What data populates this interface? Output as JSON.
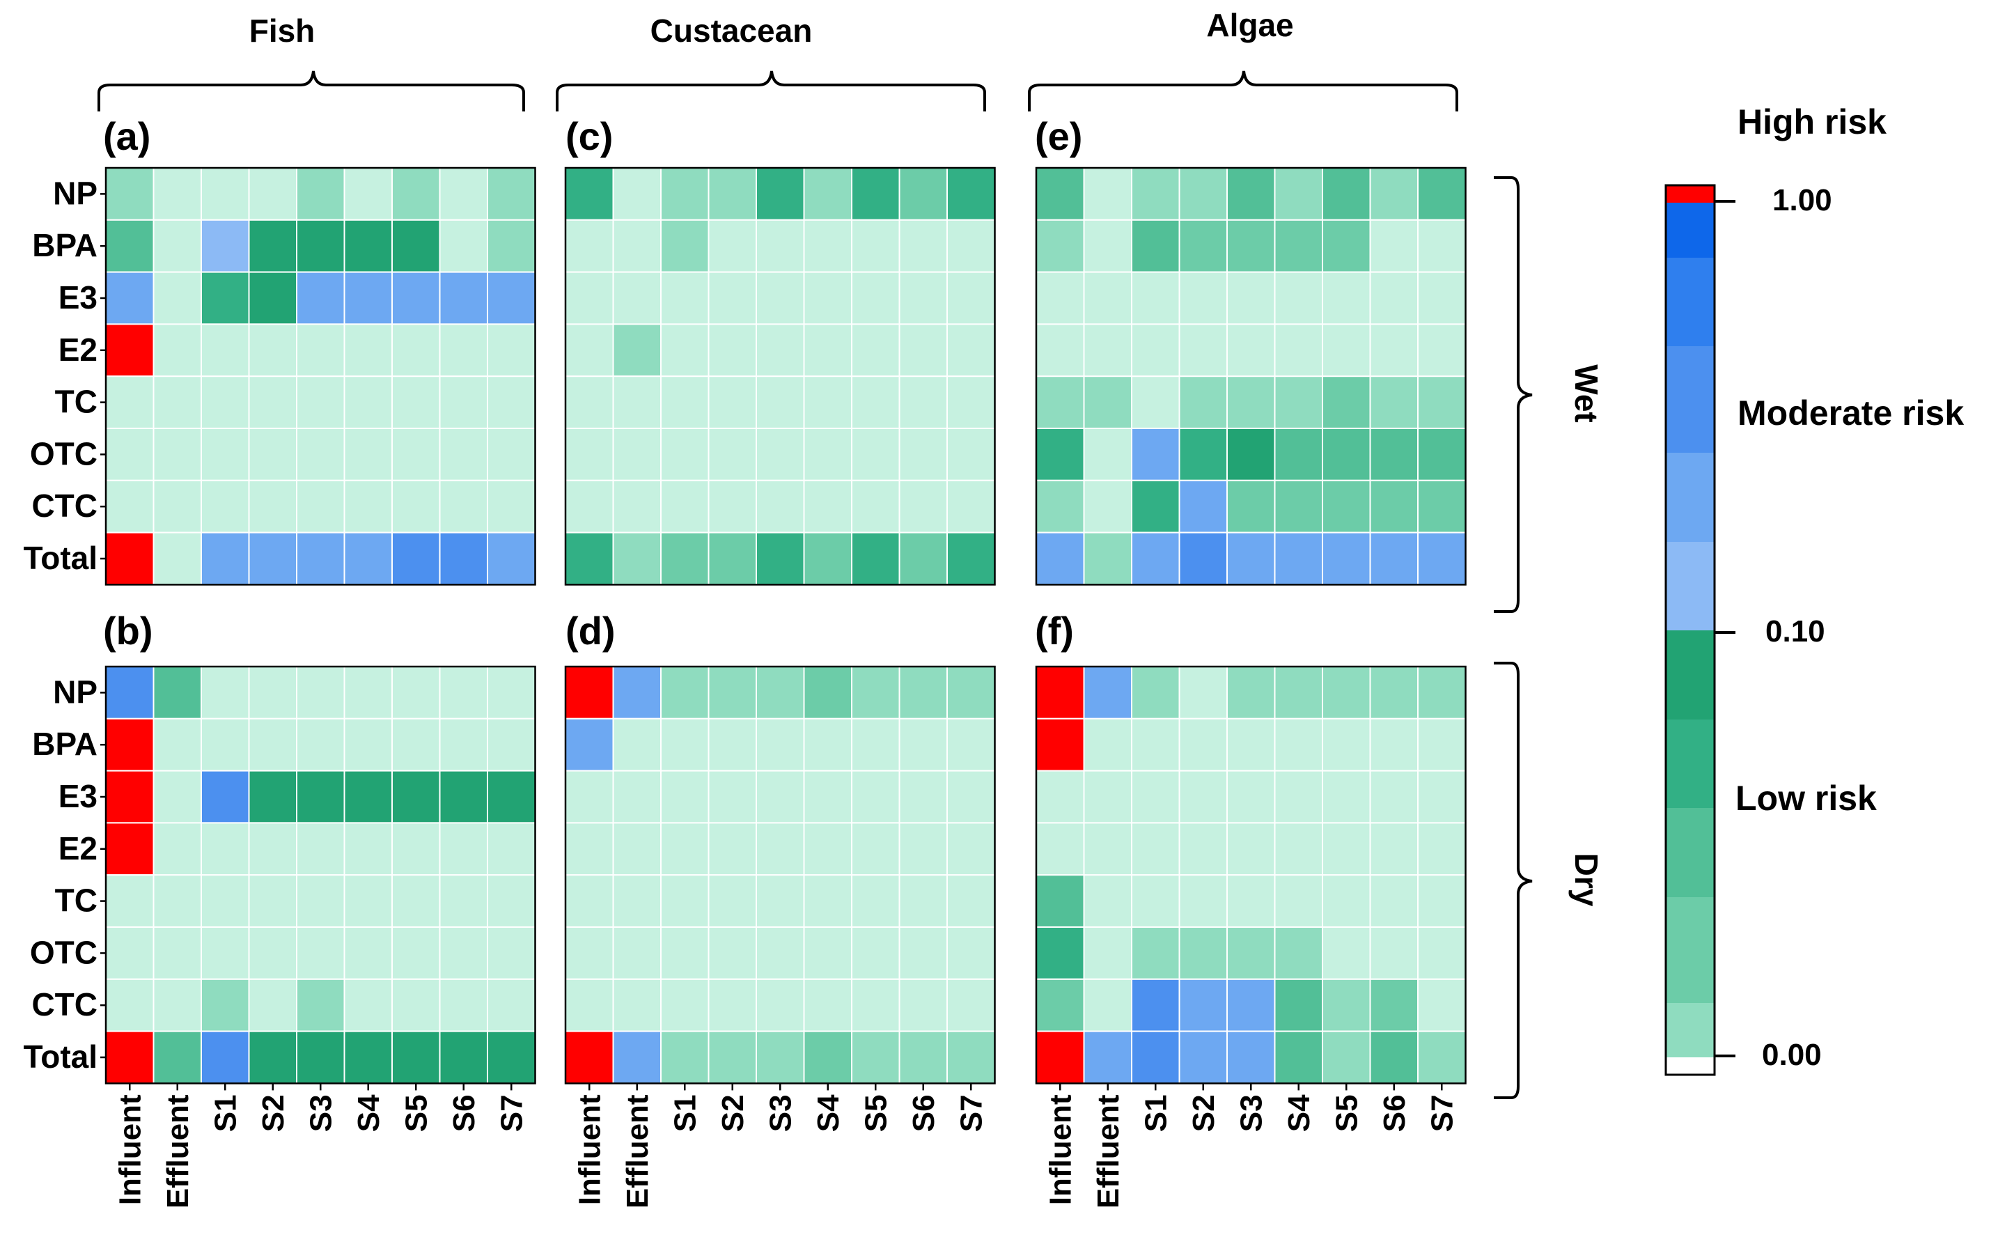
{
  "chart_data": {
    "type": "heatmap",
    "rows": [
      "NP",
      "BPA",
      "E3",
      "E2",
      "TC",
      "OTC",
      "CTC",
      "Total"
    ],
    "columns": [
      "Influent",
      "Effluent",
      "S1",
      "S2",
      "S3",
      "S4",
      "S5",
      "S6",
      "S7"
    ],
    "groups": [
      "Fish",
      "Custacean",
      "Algae"
    ],
    "seasons": [
      "Wet",
      "Dry"
    ],
    "panels": [
      {
        "id": "(a)",
        "group": 0,
        "season": 0,
        "values": [
          [
            2,
            1,
            1,
            1,
            2,
            1,
            2,
            1,
            2
          ],
          [
            4,
            1,
            7,
            6,
            6,
            6,
            6,
            1,
            2
          ],
          [
            8,
            1,
            5,
            6,
            8,
            8,
            8,
            8,
            8
          ],
          [
            12,
            1,
            1,
            1,
            1,
            1,
            1,
            1,
            1
          ],
          [
            1,
            1,
            1,
            1,
            1,
            1,
            1,
            1,
            1
          ],
          [
            1,
            1,
            1,
            1,
            1,
            1,
            1,
            1,
            1
          ],
          [
            1,
            1,
            1,
            1,
            1,
            1,
            1,
            1,
            1
          ],
          [
            12,
            1,
            8,
            8,
            8,
            8,
            9,
            9,
            8
          ]
        ]
      },
      {
        "id": "(b)",
        "group": 0,
        "season": 1,
        "values": [
          [
            9,
            4,
            1,
            1,
            1,
            1,
            1,
            1,
            1
          ],
          [
            12,
            1,
            1,
            1,
            1,
            1,
            1,
            1,
            1
          ],
          [
            12,
            1,
            9,
            6,
            6,
            6,
            6,
            6,
            6
          ],
          [
            12,
            1,
            1,
            1,
            1,
            1,
            1,
            1,
            1
          ],
          [
            1,
            1,
            1,
            1,
            1,
            1,
            1,
            1,
            1
          ],
          [
            1,
            1,
            1,
            1,
            1,
            1,
            1,
            1,
            1
          ],
          [
            1,
            1,
            2,
            1,
            2,
            1,
            1,
            1,
            1
          ],
          [
            12,
            4,
            9,
            6,
            6,
            6,
            6,
            6,
            6
          ]
        ]
      },
      {
        "id": "(c)",
        "group": 1,
        "season": 0,
        "values": [
          [
            5,
            1,
            2,
            2,
            5,
            2,
            5,
            3,
            5
          ],
          [
            1,
            1,
            2,
            1,
            1,
            1,
            1,
            1,
            1
          ],
          [
            1,
            1,
            1,
            1,
            1,
            1,
            1,
            1,
            1
          ],
          [
            1,
            2,
            1,
            1,
            1,
            1,
            1,
            1,
            1
          ],
          [
            1,
            1,
            1,
            1,
            1,
            1,
            1,
            1,
            1
          ],
          [
            1,
            1,
            1,
            1,
            1,
            1,
            1,
            1,
            1
          ],
          [
            1,
            1,
            1,
            1,
            1,
            1,
            1,
            1,
            1
          ],
          [
            5,
            2,
            3,
            3,
            5,
            3,
            5,
            3,
            5
          ]
        ]
      },
      {
        "id": "(d)",
        "group": 1,
        "season": 1,
        "values": [
          [
            12,
            8,
            2,
            2,
            2,
            3,
            2,
            2,
            2
          ],
          [
            8,
            1,
            1,
            1,
            1,
            1,
            1,
            1,
            1
          ],
          [
            1,
            1,
            1,
            1,
            1,
            1,
            1,
            1,
            1
          ],
          [
            1,
            1,
            1,
            1,
            1,
            1,
            1,
            1,
            1
          ],
          [
            1,
            1,
            1,
            1,
            1,
            1,
            1,
            1,
            1
          ],
          [
            1,
            1,
            1,
            1,
            1,
            1,
            1,
            1,
            1
          ],
          [
            1,
            1,
            1,
            1,
            1,
            1,
            1,
            1,
            1
          ],
          [
            12,
            8,
            2,
            2,
            2,
            3,
            2,
            2,
            2
          ]
        ]
      },
      {
        "id": "(e)",
        "group": 2,
        "season": 0,
        "values": [
          [
            4,
            1,
            2,
            2,
            4,
            2,
            4,
            2,
            4
          ],
          [
            2,
            1,
            4,
            3,
            3,
            3,
            3,
            1,
            1
          ],
          [
            1,
            1,
            1,
            1,
            1,
            1,
            1,
            1,
            1
          ],
          [
            1,
            1,
            1,
            1,
            1,
            1,
            1,
            1,
            1
          ],
          [
            2,
            2,
            1,
            2,
            2,
            2,
            3,
            2,
            2
          ],
          [
            5,
            1,
            8,
            5,
            6,
            4,
            4,
            4,
            4
          ],
          [
            2,
            1,
            5,
            8,
            3,
            3,
            3,
            3,
            3
          ],
          [
            8,
            2,
            8,
            9,
            8,
            8,
            8,
            8,
            8
          ]
        ]
      },
      {
        "id": "(f)",
        "group": 2,
        "season": 1,
        "values": [
          [
            12,
            8,
            2,
            1,
            2,
            2,
            2,
            2,
            2
          ],
          [
            12,
            1,
            1,
            1,
            1,
            1,
            1,
            1,
            1
          ],
          [
            1,
            1,
            1,
            1,
            1,
            1,
            1,
            1,
            1
          ],
          [
            1,
            1,
            1,
            1,
            1,
            1,
            1,
            1,
            1
          ],
          [
            4,
            1,
            1,
            1,
            1,
            1,
            1,
            1,
            1
          ],
          [
            5,
            1,
            2,
            2,
            2,
            2,
            1,
            1,
            1
          ],
          [
            3,
            1,
            9,
            8,
            8,
            4,
            2,
            3,
            1
          ],
          [
            12,
            8,
            9,
            8,
            8,
            4,
            2,
            4,
            2
          ]
        ]
      }
    ],
    "color_scale": {
      "palette": [
        "#ffffff",
        "#c6f1e0",
        "#8fdcbf",
        "#6ccca8",
        "#52bf97",
        "#32b085",
        "#22a373",
        "#8cbaf5",
        "#6da8f2",
        "#4c90ef",
        "#2f7fee",
        "#0e67ea",
        "#ff0000"
      ],
      "levels": [
        {
          "label": "High risk",
          "tick": "1.00"
        },
        {
          "label": "Moderate risk",
          "tick": "0.10"
        },
        {
          "label": "Low risk",
          "tick": "0.00"
        }
      ]
    },
    "axis_color": "#000000",
    "grid_color": "#ffffff"
  },
  "labels": {
    "group_fish": "Fish",
    "group_crustacean": "Custacean",
    "group_algae": "Algae",
    "season_wet": "Wet",
    "season_dry": "Dry",
    "high_risk": "High risk",
    "moderate_risk": "Moderate risk",
    "low_risk": "Low risk",
    "tick_high": "1.00",
    "tick_mid": "0.10",
    "tick_low": "0.00",
    "panel_a": "(a)",
    "panel_b": "(b)",
    "panel_c": "(c)",
    "panel_d": "(d)",
    "panel_e": "(e)",
    "panel_f": "(f)"
  }
}
